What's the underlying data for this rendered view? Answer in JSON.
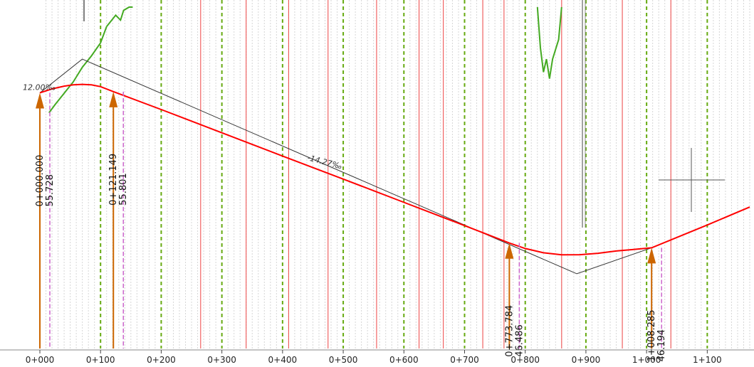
{
  "view": {
    "name": "vertical-profile-view",
    "background": "#ffffff"
  },
  "chart_data": {
    "type": "line",
    "xlim": [
      0,
      1170
    ],
    "ylim": [
      40,
      61
    ],
    "station_ticks": [
      {
        "value": 0,
        "label": "0+000"
      },
      {
        "value": 100,
        "label": "0+100"
      },
      {
        "value": 200,
        "label": "0+200"
      },
      {
        "value": 300,
        "label": "0+300"
      },
      {
        "value": 400,
        "label": "0+400"
      },
      {
        "value": 500,
        "label": "0+500"
      },
      {
        "value": 600,
        "label": "0+600"
      },
      {
        "value": 700,
        "label": "0+700"
      },
      {
        "value": 800,
        "label": "0+800"
      },
      {
        "value": 900,
        "label": "0+900"
      },
      {
        "value": 1000,
        "label": "1+000"
      },
      {
        "value": 1100,
        "label": "1+100"
      }
    ],
    "red_section_lines": [
      265,
      340,
      410,
      475,
      555,
      625,
      665,
      730,
      765,
      860,
      960,
      1040
    ],
    "green_section_lines": [
      100,
      200,
      300,
      400,
      500,
      600,
      700,
      800,
      900,
      1000,
      1100
    ],
    "grades": [
      {
        "label": "12.00‰",
        "station": 0,
        "elevation": 55.9
      },
      {
        "label": "-14.27‰",
        "station": 440,
        "elevation": 51.6
      }
    ],
    "pvis": [
      {
        "station": 70,
        "elevation": 57.8
      },
      {
        "station": 885,
        "elevation": 44.6
      }
    ],
    "design_profile": {
      "color": "#ff0000",
      "x": [
        0,
        20,
        40,
        55,
        70,
        85,
        100,
        121.149,
        200,
        300,
        400,
        500,
        600,
        700,
        773.784,
        800,
        830,
        860,
        890,
        920,
        950,
        980,
        1008.285,
        1100,
        1170
      ],
      "y": [
        55.728,
        55.97,
        56.14,
        56.22,
        56.25,
        56.22,
        56.11,
        55.801,
        54.7,
        53.27,
        51.84,
        50.42,
        48.99,
        47.56,
        46.486,
        46.15,
        45.89,
        45.76,
        45.77,
        45.86,
        46.0,
        46.1,
        46.194,
        47.6,
        48.7
      ]
    },
    "existing_ground": [
      {
        "x": [
          15,
          25,
          40,
          55,
          70,
          85,
          100,
          110
        ],
        "y": [
          54.5,
          55.0,
          55.7,
          56.4,
          57.3,
          58.0,
          58.8,
          59.8
        ]
      },
      {
        "x": [
          110,
          125,
          133,
          138,
          147,
          153
        ],
        "y": [
          59.8,
          60.5,
          60.2,
          60.8,
          61.0,
          61.0
        ]
      }
    ],
    "ground_dip": {
      "x": [
        820,
        825,
        830,
        835,
        840,
        845,
        855,
        860
      ],
      "y": [
        61.0,
        58.5,
        57.0,
        57.8,
        56.6,
        57.8,
        59.0,
        61.0
      ]
    },
    "markers": [
      {
        "station_label": "0+000.000",
        "elevation_label": "55.728",
        "station": 0,
        "elevation": 55.728
      },
      {
        "station_label": "0+121.149",
        "elevation_label": "55.801",
        "station": 121.149,
        "elevation": 55.801
      },
      {
        "station_label": "0+773.784",
        "elevation_label": "46.486",
        "station": 773.784,
        "elevation": 46.486
      },
      {
        "station_label": "1+008.285",
        "elevation_label": "46.194",
        "station": 1008.285,
        "elevation": 46.194
      }
    ],
    "colors": {
      "design": "#ff0000",
      "ground": "#44aa22",
      "green_line": "#66aa11",
      "red_line": "#ee4444",
      "grid": "#d6d6d6",
      "marker": "#cc6600",
      "marker_guide": "#cc66cc",
      "tangent": "#333333",
      "axis_text": "#222222"
    }
  }
}
